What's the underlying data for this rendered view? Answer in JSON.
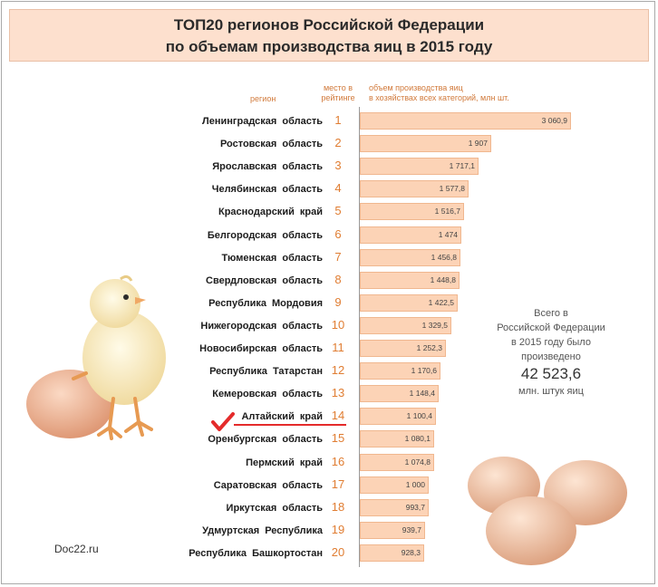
{
  "title": {
    "line1": "ТОП20 регионов Российской Федерации",
    "line2": "по объемам производства яиц в 2015 году"
  },
  "headers": {
    "region": "регион",
    "rank_line1": "место в",
    "rank_line2": "рейтинге",
    "volume_line1": "объем производства яиц",
    "volume_line2": "в хозяйствах всех категорий, млн шт."
  },
  "chart_data": {
    "type": "bar",
    "orientation": "horizontal",
    "categories": [
      "Ленинградская область",
      "Ростовская область",
      "Ярославская область",
      "Челябинская область",
      "Краснодарский край",
      "Белгородская область",
      "Тюменская область",
      "Свердловская область",
      "Республика Мордовия",
      "Нижегородская область",
      "Новосибирская область",
      "Республика Татарстан",
      "Кемеровская область",
      "Алтайский край",
      "Оренбургская область",
      "Пермский край",
      "Саратовская область",
      "Иркутская область",
      "Удмуртская Республика",
      "Республика Башкортостан"
    ],
    "ranks": [
      "1",
      "2",
      "3",
      "4",
      "5",
      "6",
      "7",
      "8",
      "9",
      "10",
      "11",
      "12",
      "13",
      "14",
      "15",
      "16",
      "17",
      "18",
      "19",
      "20"
    ],
    "values": [
      3060.9,
      1907,
      1717.1,
      1577.8,
      1516.7,
      1474,
      1456.8,
      1448.8,
      1422.5,
      1329.5,
      1252.3,
      1170.6,
      1148.4,
      1100.4,
      1080.1,
      1074.8,
      1000,
      993.7,
      939.7,
      928.3
    ],
    "value_labels": [
      "3 060,9",
      "1 907",
      "1 717,1",
      "1 577,8",
      "1 516,7",
      "1 474",
      "1 456,8",
      "1 448,8",
      "1 422,5",
      "1 329,5",
      "1 252,3",
      "1 170,6",
      "1 148,4",
      "1 100,4",
      "1 080,1",
      "1 074,8",
      "1 000",
      "993,7",
      "939,7",
      "928,3"
    ],
    "highlighted": "Алтайский край",
    "xlim": [
      0,
      3060.9
    ],
    "grid": false
  },
  "total": {
    "line1": "Всего в",
    "line2": "Российской Федерации",
    "line3": "в 2015 году было",
    "line4": "произведено",
    "value": "42 523,6",
    "unit": "млн. штук яиц"
  },
  "source": "Doc22.ru",
  "colors": {
    "bar_fill": "#fcd3b6",
    "bar_border": "#f0b78f",
    "rank": "#e07d32",
    "title_bg": "#fde0ce",
    "highlight": "#e42b2b"
  }
}
